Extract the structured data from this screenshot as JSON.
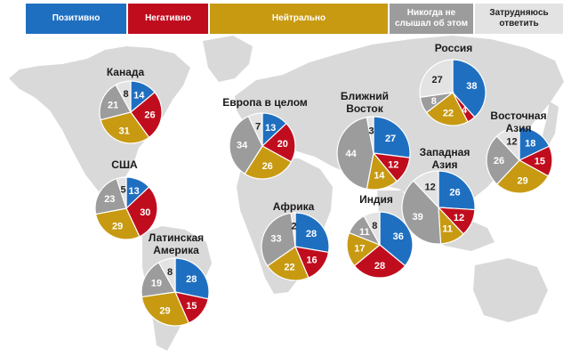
{
  "legend": {
    "positive": "Позитивно",
    "negative": "Негативно",
    "neutral": "Нейтрально",
    "never_heard_line1": "Никогда не",
    "never_heard_line2": "слышал об этом",
    "undecided": "Затрудняюсь ответить"
  },
  "colors": {
    "positive": "#1f6fc1",
    "negative": "#c00d1e",
    "neutral": "#c79a12",
    "never_heard": "#9c9c9c",
    "undecided": "#e3e3e3",
    "map": "#d9d9d9"
  },
  "chart_data": {
    "type": "pie",
    "categories": [
      "Позитивно",
      "Негативно",
      "Нейтрально",
      "Никогда не слышал об этом",
      "Затрудняюсь ответить"
    ],
    "pies": [
      {
        "region": "Канада",
        "label_lines": [
          "Канада"
        ],
        "values": [
          14,
          26,
          31,
          21,
          8
        ]
      },
      {
        "region": "США",
        "label_lines": [
          "США"
        ],
        "values": [
          13,
          30,
          29,
          23,
          5
        ]
      },
      {
        "region": "Латинская Америка",
        "label_lines": [
          "Латинская",
          "Америка"
        ],
        "values": [
          28,
          15,
          29,
          19,
          8
        ]
      },
      {
        "region": "Европа в целом",
        "label_lines": [
          "Европа в целом"
        ],
        "values": [
          13,
          20,
          26,
          34,
          7
        ]
      },
      {
        "region": "Африка",
        "label_lines": [
          "Африка"
        ],
        "values": [
          28,
          16,
          22,
          33,
          2
        ]
      },
      {
        "region": "Ближний Восток",
        "label_lines": [
          "Ближний",
          "Восток"
        ],
        "values": [
          27,
          12,
          14,
          44,
          3
        ]
      },
      {
        "region": "Россия",
        "label_lines": [
          "Россия"
        ],
        "values": [
          38,
          4,
          22,
          8,
          27
        ]
      },
      {
        "region": "Индия",
        "label_lines": [
          "Индия"
        ],
        "values": [
          36,
          28,
          17,
          11,
          8
        ]
      },
      {
        "region": "Западная Азия",
        "label_lines": [
          "Западная",
          "Азия"
        ],
        "values": [
          26,
          12,
          11,
          39,
          12
        ]
      },
      {
        "region": "Восточная Азия",
        "label_lines": [
          "Восточная",
          "Азия"
        ],
        "values": [
          18,
          15,
          29,
          26,
          12
        ]
      }
    ]
  }
}
